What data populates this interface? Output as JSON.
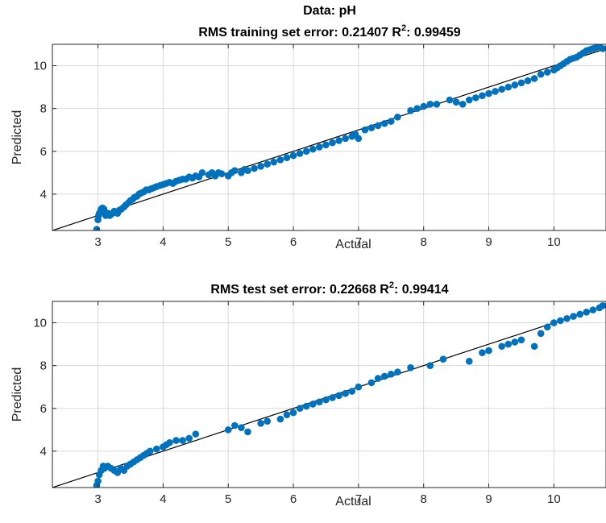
{
  "figure": {
    "title_line1": "Data: pH",
    "colors": {
      "points": "#0072BD",
      "fit_line": "#000000",
      "grid": "#d9d9d9",
      "axes": "#262626"
    }
  },
  "chart_data": [
    {
      "type": "scatter",
      "title": {
        "prefix": "RMS training set error: 0.21407  R",
        "sup": "2",
        "suffix": ": 0.99459"
      },
      "xlabel": "Actual",
      "ylabel": "Predicted",
      "xlim": [
        2.3,
        10.8
      ],
      "ylim": [
        2.3,
        11.0
      ],
      "xticks": [
        3,
        4,
        5,
        6,
        7,
        8,
        9,
        10
      ],
      "yticks": [
        4,
        6,
        8,
        10
      ],
      "grid": true,
      "reference_line": "y = x",
      "series": [
        {
          "x": [
            2.98,
            3.0,
            3.01,
            3.02,
            3.04,
            3.05,
            3.07,
            3.09,
            3.1,
            3.12,
            3.14,
            3.16,
            3.18,
            3.2,
            3.22,
            3.25,
            3.27,
            3.3,
            3.33,
            3.36,
            3.4,
            3.43,
            3.47,
            3.5,
            3.53,
            3.56,
            3.6,
            3.63,
            3.66,
            3.7,
            3.74,
            3.78,
            3.82,
            3.86,
            3.9,
            3.95,
            4.0,
            4.05,
            4.1,
            4.15,
            4.2,
            4.25,
            4.3,
            4.35,
            4.4,
            4.45,
            4.5,
            4.55,
            4.6,
            4.7,
            4.75,
            4.8,
            4.85,
            4.9,
            5.0,
            5.05,
            5.1,
            5.2,
            5.25,
            5.3,
            5.4,
            5.5,
            5.6,
            5.7,
            5.8,
            5.9,
            6.0,
            6.1,
            6.2,
            6.3,
            6.4,
            6.5,
            6.6,
            6.7,
            6.8,
            6.9,
            6.95,
            7.0,
            7.1,
            7.2,
            7.3,
            7.4,
            7.5,
            7.6,
            7.8,
            7.9,
            8.0,
            8.1,
            8.2,
            8.4,
            8.5,
            8.6,
            8.7,
            8.8,
            8.9,
            9.0,
            9.1,
            9.2,
            9.3,
            9.4,
            9.5,
            9.6,
            9.7,
            9.8,
            9.9,
            10.0,
            10.05,
            10.1,
            10.15,
            10.2,
            10.25,
            10.3,
            10.35,
            10.4,
            10.45,
            10.5,
            10.55,
            10.6,
            10.65,
            10.7,
            10.75
          ],
          "y": [
            2.35,
            2.8,
            3.0,
            3.1,
            3.2,
            3.3,
            3.35,
            3.3,
            3.2,
            3.0,
            3.05,
            3.1,
            3.0,
            3.05,
            3.1,
            3.2,
            3.15,
            3.1,
            3.25,
            3.3,
            3.4,
            3.5,
            3.6,
            3.7,
            3.75,
            3.85,
            3.9,
            4.0,
            4.05,
            4.1,
            4.2,
            4.2,
            4.25,
            4.3,
            4.35,
            4.4,
            4.45,
            4.5,
            4.55,
            4.5,
            4.6,
            4.65,
            4.7,
            4.7,
            4.8,
            4.75,
            4.85,
            4.8,
            5.0,
            4.9,
            5.0,
            4.85,
            5.0,
            4.95,
            4.85,
            5.0,
            5.1,
            5.0,
            5.15,
            5.1,
            5.2,
            5.3,
            5.4,
            5.5,
            5.6,
            5.7,
            5.8,
            5.9,
            6.0,
            6.1,
            6.2,
            6.3,
            6.4,
            6.5,
            6.6,
            6.7,
            6.8,
            6.6,
            7.0,
            7.1,
            7.2,
            7.3,
            7.4,
            7.6,
            7.9,
            8.0,
            8.1,
            8.2,
            8.2,
            8.4,
            8.3,
            8.2,
            8.4,
            8.5,
            8.6,
            8.7,
            8.8,
            8.9,
            9.0,
            9.1,
            9.2,
            9.3,
            9.4,
            9.6,
            9.7,
            9.8,
            9.9,
            10.0,
            10.1,
            10.2,
            10.3,
            10.35,
            10.4,
            10.5,
            10.6,
            10.7,
            10.75,
            10.8,
            10.85,
            10.9,
            10.8
          ]
        }
      ]
    },
    {
      "type": "scatter",
      "title": {
        "prefix": "RMS test set error: 0.22668  R",
        "sup": "2",
        "suffix": ": 0.99414"
      },
      "xlabel": "Actual",
      "ylabel": "Predicted",
      "xlim": [
        2.3,
        10.8
      ],
      "ylim": [
        2.3,
        11.0
      ],
      "xticks": [
        3,
        4,
        5,
        6,
        7,
        8,
        9,
        10
      ],
      "yticks": [
        4,
        6,
        8,
        10
      ],
      "grid": true,
      "reference_line": "y = x",
      "series": [
        {
          "x": [
            2.98,
            3.0,
            3.02,
            3.05,
            3.08,
            3.1,
            3.15,
            3.2,
            3.25,
            3.3,
            3.35,
            3.4,
            3.45,
            3.5,
            3.55,
            3.6,
            3.65,
            3.7,
            3.75,
            3.8,
            3.9,
            4.0,
            4.05,
            4.1,
            4.2,
            4.3,
            4.4,
            4.5,
            5.0,
            5.1,
            5.2,
            5.3,
            5.5,
            5.6,
            5.8,
            5.9,
            6.0,
            6.1,
            6.2,
            6.3,
            6.4,
            6.5,
            6.6,
            6.7,
            6.8,
            6.9,
            7.0,
            7.2,
            7.3,
            7.4,
            7.5,
            7.6,
            7.8,
            8.1,
            8.3,
            8.7,
            8.9,
            9.0,
            9.2,
            9.3,
            9.4,
            9.5,
            9.7,
            9.8,
            9.9,
            10.0,
            10.1,
            10.2,
            10.3,
            10.4,
            10.5,
            10.6,
            10.7,
            10.75
          ],
          "y": [
            2.4,
            2.6,
            2.9,
            3.1,
            3.3,
            3.2,
            3.3,
            3.2,
            3.1,
            3.0,
            3.2,
            3.1,
            3.3,
            3.4,
            3.5,
            3.6,
            3.7,
            3.8,
            3.9,
            4.0,
            4.1,
            4.2,
            4.3,
            4.4,
            4.5,
            4.5,
            4.6,
            4.8,
            5.0,
            5.2,
            5.1,
            4.9,
            5.3,
            5.4,
            5.5,
            5.7,
            5.8,
            6.0,
            6.1,
            6.2,
            6.3,
            6.4,
            6.5,
            6.6,
            6.7,
            6.8,
            7.0,
            7.2,
            7.4,
            7.5,
            7.6,
            7.7,
            7.9,
            8.0,
            8.3,
            8.2,
            8.6,
            8.7,
            8.9,
            9.0,
            9.1,
            9.2,
            8.9,
            9.5,
            9.8,
            10.0,
            10.1,
            10.2,
            10.3,
            10.4,
            10.5,
            10.6,
            10.7,
            10.8
          ]
        }
      ]
    }
  ]
}
